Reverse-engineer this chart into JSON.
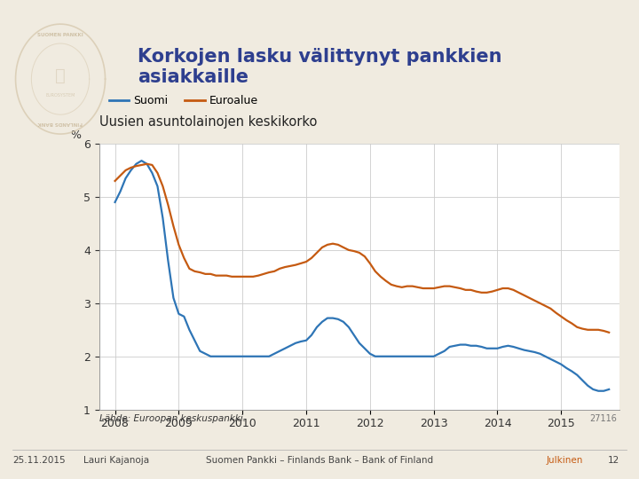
{
  "title": "Korkojen lasku välittynyt pankkien\nasiakkaille",
  "subtitle": "Uusien asuntolainojen keskikorko",
  "legend_suomi": "Suomi",
  "legend_euroalue": "Euroalue",
  "ylabel": "%",
  "source": "Lähde: Euroopan keskuspankki.",
  "chart_id": "27116",
  "footer_date": "25.11.2015",
  "footer_author": "Lauri Kajanoja",
  "footer_center": "Suomen Pankki – Finlands Bank – Bank of Finland",
  "footer_right": "Julkinen",
  "footer_page": "12",
  "ylim": [
    1,
    6
  ],
  "yticks": [
    1,
    2,
    3,
    4,
    5,
    6
  ],
  "xlim_min": 2007.75,
  "xlim_max": 2015.92,
  "bg_color": "#f0ebe0",
  "plot_bg": "#ffffff",
  "title_color": "#2e3f8f",
  "suomi_color": "#2e75b6",
  "euroalue_color": "#c55a11",
  "grid_color": "#cccccc",
  "suomi_data": {
    "dates": [
      2008.0,
      2008.083,
      2008.167,
      2008.25,
      2008.333,
      2008.417,
      2008.5,
      2008.583,
      2008.667,
      2008.75,
      2008.833,
      2008.917,
      2009.0,
      2009.083,
      2009.167,
      2009.25,
      2009.333,
      2009.417,
      2009.5,
      2009.583,
      2009.667,
      2009.75,
      2009.833,
      2009.917,
      2010.0,
      2010.083,
      2010.167,
      2010.25,
      2010.333,
      2010.417,
      2010.5,
      2010.583,
      2010.667,
      2010.75,
      2010.833,
      2010.917,
      2011.0,
      2011.083,
      2011.167,
      2011.25,
      2011.333,
      2011.417,
      2011.5,
      2011.583,
      2011.667,
      2011.75,
      2011.833,
      2011.917,
      2012.0,
      2012.083,
      2012.167,
      2012.25,
      2012.333,
      2012.417,
      2012.5,
      2012.583,
      2012.667,
      2012.75,
      2012.833,
      2012.917,
      2013.0,
      2013.083,
      2013.167,
      2013.25,
      2013.333,
      2013.417,
      2013.5,
      2013.583,
      2013.667,
      2013.75,
      2013.833,
      2013.917,
      2014.0,
      2014.083,
      2014.167,
      2014.25,
      2014.333,
      2014.417,
      2014.5,
      2014.583,
      2014.667,
      2014.75,
      2014.833,
      2014.917,
      2015.0,
      2015.083,
      2015.167,
      2015.25,
      2015.333,
      2015.417,
      2015.5,
      2015.583,
      2015.667,
      2015.75
    ],
    "values": [
      4.9,
      5.1,
      5.35,
      5.5,
      5.62,
      5.68,
      5.62,
      5.45,
      5.2,
      4.6,
      3.8,
      3.1,
      2.8,
      2.75,
      2.5,
      2.3,
      2.1,
      2.05,
      2.0,
      2.0,
      2.0,
      2.0,
      2.0,
      2.0,
      2.0,
      2.0,
      2.0,
      2.0,
      2.0,
      2.0,
      2.05,
      2.1,
      2.15,
      2.2,
      2.25,
      2.28,
      2.3,
      2.4,
      2.55,
      2.65,
      2.72,
      2.72,
      2.7,
      2.65,
      2.55,
      2.4,
      2.25,
      2.15,
      2.05,
      2.0,
      2.0,
      2.0,
      2.0,
      2.0,
      2.0,
      2.0,
      2.0,
      2.0,
      2.0,
      2.0,
      2.0,
      2.05,
      2.1,
      2.18,
      2.2,
      2.22,
      2.22,
      2.2,
      2.2,
      2.18,
      2.15,
      2.15,
      2.15,
      2.18,
      2.2,
      2.18,
      2.15,
      2.12,
      2.1,
      2.08,
      2.05,
      2.0,
      1.95,
      1.9,
      1.85,
      1.78,
      1.72,
      1.65,
      1.55,
      1.45,
      1.38,
      1.35,
      1.35,
      1.38
    ]
  },
  "euroalue_data": {
    "dates": [
      2008.0,
      2008.083,
      2008.167,
      2008.25,
      2008.333,
      2008.417,
      2008.5,
      2008.583,
      2008.667,
      2008.75,
      2008.833,
      2008.917,
      2009.0,
      2009.083,
      2009.167,
      2009.25,
      2009.333,
      2009.417,
      2009.5,
      2009.583,
      2009.667,
      2009.75,
      2009.833,
      2009.917,
      2010.0,
      2010.083,
      2010.167,
      2010.25,
      2010.333,
      2010.417,
      2010.5,
      2010.583,
      2010.667,
      2010.75,
      2010.833,
      2010.917,
      2011.0,
      2011.083,
      2011.167,
      2011.25,
      2011.333,
      2011.417,
      2011.5,
      2011.583,
      2011.667,
      2011.75,
      2011.833,
      2011.917,
      2012.0,
      2012.083,
      2012.167,
      2012.25,
      2012.333,
      2012.417,
      2012.5,
      2012.583,
      2012.667,
      2012.75,
      2012.833,
      2012.917,
      2013.0,
      2013.083,
      2013.167,
      2013.25,
      2013.333,
      2013.417,
      2013.5,
      2013.583,
      2013.667,
      2013.75,
      2013.833,
      2013.917,
      2014.0,
      2014.083,
      2014.167,
      2014.25,
      2014.333,
      2014.417,
      2014.5,
      2014.583,
      2014.667,
      2014.75,
      2014.833,
      2014.917,
      2015.0,
      2015.083,
      2015.167,
      2015.25,
      2015.333,
      2015.417,
      2015.5,
      2015.583,
      2015.667,
      2015.75
    ],
    "values": [
      5.3,
      5.4,
      5.5,
      5.55,
      5.58,
      5.6,
      5.62,
      5.6,
      5.45,
      5.2,
      4.85,
      4.45,
      4.1,
      3.85,
      3.65,
      3.6,
      3.58,
      3.55,
      3.55,
      3.52,
      3.52,
      3.52,
      3.5,
      3.5,
      3.5,
      3.5,
      3.5,
      3.52,
      3.55,
      3.58,
      3.6,
      3.65,
      3.68,
      3.7,
      3.72,
      3.75,
      3.78,
      3.85,
      3.95,
      4.05,
      4.1,
      4.12,
      4.1,
      4.05,
      4.0,
      3.98,
      3.95,
      3.88,
      3.75,
      3.6,
      3.5,
      3.42,
      3.35,
      3.32,
      3.3,
      3.32,
      3.32,
      3.3,
      3.28,
      3.28,
      3.28,
      3.3,
      3.32,
      3.32,
      3.3,
      3.28,
      3.25,
      3.25,
      3.22,
      3.2,
      3.2,
      3.22,
      3.25,
      3.28,
      3.28,
      3.25,
      3.2,
      3.15,
      3.1,
      3.05,
      3.0,
      2.95,
      2.9,
      2.82,
      2.75,
      2.68,
      2.62,
      2.55,
      2.52,
      2.5,
      2.5,
      2.5,
      2.48,
      2.45
    ]
  }
}
